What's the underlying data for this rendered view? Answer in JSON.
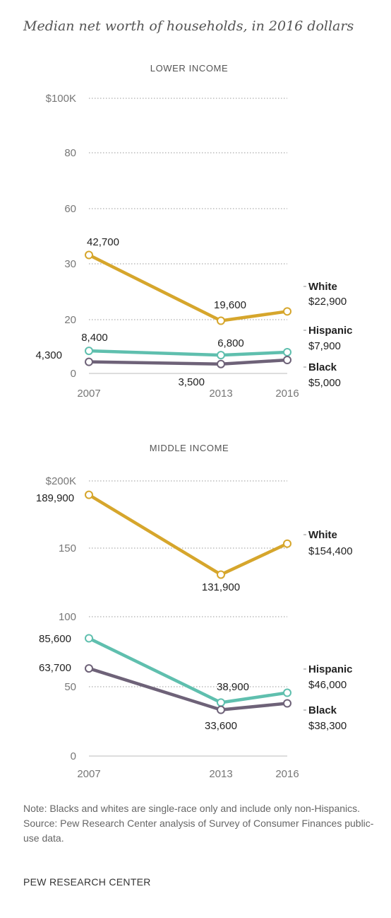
{
  "subtitle": "Median net worth of households, in 2016 dollars",
  "note": "Note: Blacks and whites are single-race only and include only non-Hispanics.",
  "source": "Source: Pew Research Center analysis of Survey of Consumer Finances public-use data.",
  "org": "PEW RESEARCH CENTER",
  "colors": {
    "White": "#d6a62c",
    "Hispanic": "#5fbfae",
    "Black": "#6e6278",
    "grid": "#9a9a9a",
    "tick": "#777777",
    "text": "#222222"
  },
  "chart_data": [
    {
      "type": "line",
      "title": "LOWER INCOME",
      "x": [
        "2007",
        "2013",
        "2016"
      ],
      "y_ticks": [
        "$100K",
        "80",
        "60",
        "30",
        "20",
        "0"
      ],
      "y_scale": "broken",
      "series": [
        {
          "name": "White",
          "values": [
            42700,
            19600,
            22900
          ],
          "end_label": "$22,900"
        },
        {
          "name": "Hispanic",
          "values": [
            8400,
            6800,
            7900
          ],
          "end_label": "$7,900"
        },
        {
          "name": "Black",
          "values": [
            4300,
            3500,
            5000
          ],
          "end_label": "$5,000"
        }
      ],
      "data_labels": [
        {
          "series": "White",
          "index": 0,
          "text": "42,700"
        },
        {
          "series": "White",
          "index": 1,
          "text": "19,600"
        },
        {
          "series": "Hispanic",
          "index": 0,
          "text": "8,400"
        },
        {
          "series": "Hispanic",
          "index": 1,
          "text": "6,800"
        },
        {
          "series": "Black",
          "index": 0,
          "text": "4,300"
        },
        {
          "series": "Black",
          "index": 1,
          "text": "3,500"
        }
      ]
    },
    {
      "type": "line",
      "title": "MIDDLE INCOME",
      "x": [
        "2007",
        "2013",
        "2016"
      ],
      "y_ticks": [
        "$200K",
        "150",
        "100",
        "50",
        "0"
      ],
      "series": [
        {
          "name": "White",
          "values": [
            189900,
            131900,
            154400
          ],
          "end_label": "$154,400"
        },
        {
          "name": "Hispanic",
          "values": [
            85600,
            38900,
            46000
          ],
          "end_label": "$46,000"
        },
        {
          "name": "Black",
          "values": [
            63700,
            33600,
            38300
          ],
          "end_label": "$38,300"
        }
      ],
      "data_labels": [
        {
          "series": "White",
          "index": 0,
          "text": "189,900"
        },
        {
          "series": "White",
          "index": 1,
          "text": "131,900"
        },
        {
          "series": "Hispanic",
          "index": 0,
          "text": "85,600"
        },
        {
          "series": "Hispanic",
          "index": 1,
          "text": "38,900"
        },
        {
          "series": "Black",
          "index": 0,
          "text": "63,700"
        },
        {
          "series": "Black",
          "index": 1,
          "text": "33,600"
        }
      ]
    }
  ]
}
